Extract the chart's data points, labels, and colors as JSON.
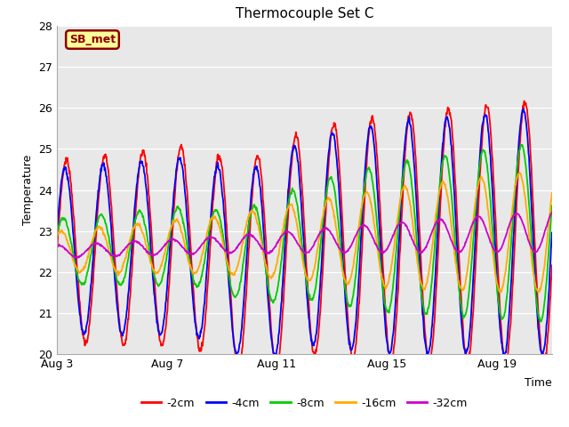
{
  "title": "Thermocouple Set C",
  "xlabel": "Time",
  "ylabel": "Temperature",
  "ylim": [
    20.0,
    28.0
  ],
  "yticks": [
    20.0,
    21.0,
    22.0,
    23.0,
    24.0,
    25.0,
    26.0,
    27.0,
    28.0
  ],
  "xtick_labels": [
    "Aug 3",
    "Aug 7",
    "Aug 11",
    "Aug 15",
    "Aug 19"
  ],
  "xtick_positions": [
    0,
    4,
    8,
    12,
    16
  ],
  "annotation": "SB_met",
  "plot_bg_color": "#e8e8e8",
  "series_colors": [
    "#ff0000",
    "#0000ff",
    "#00cc00",
    "#ffaa00",
    "#cc00cc"
  ],
  "series_labels": [
    "-2cm",
    "-4cm",
    "-8cm",
    "-16cm",
    "-32cm"
  ],
  "n_days": 18,
  "n_pts": 1080,
  "base_temp": 22.5,
  "trend_total": 0.5,
  "freq_per_day": 0.72,
  "title_fontsize": 11,
  "axis_fontsize": 9,
  "legend_fontsize": 9,
  "linewidth": 1.3
}
